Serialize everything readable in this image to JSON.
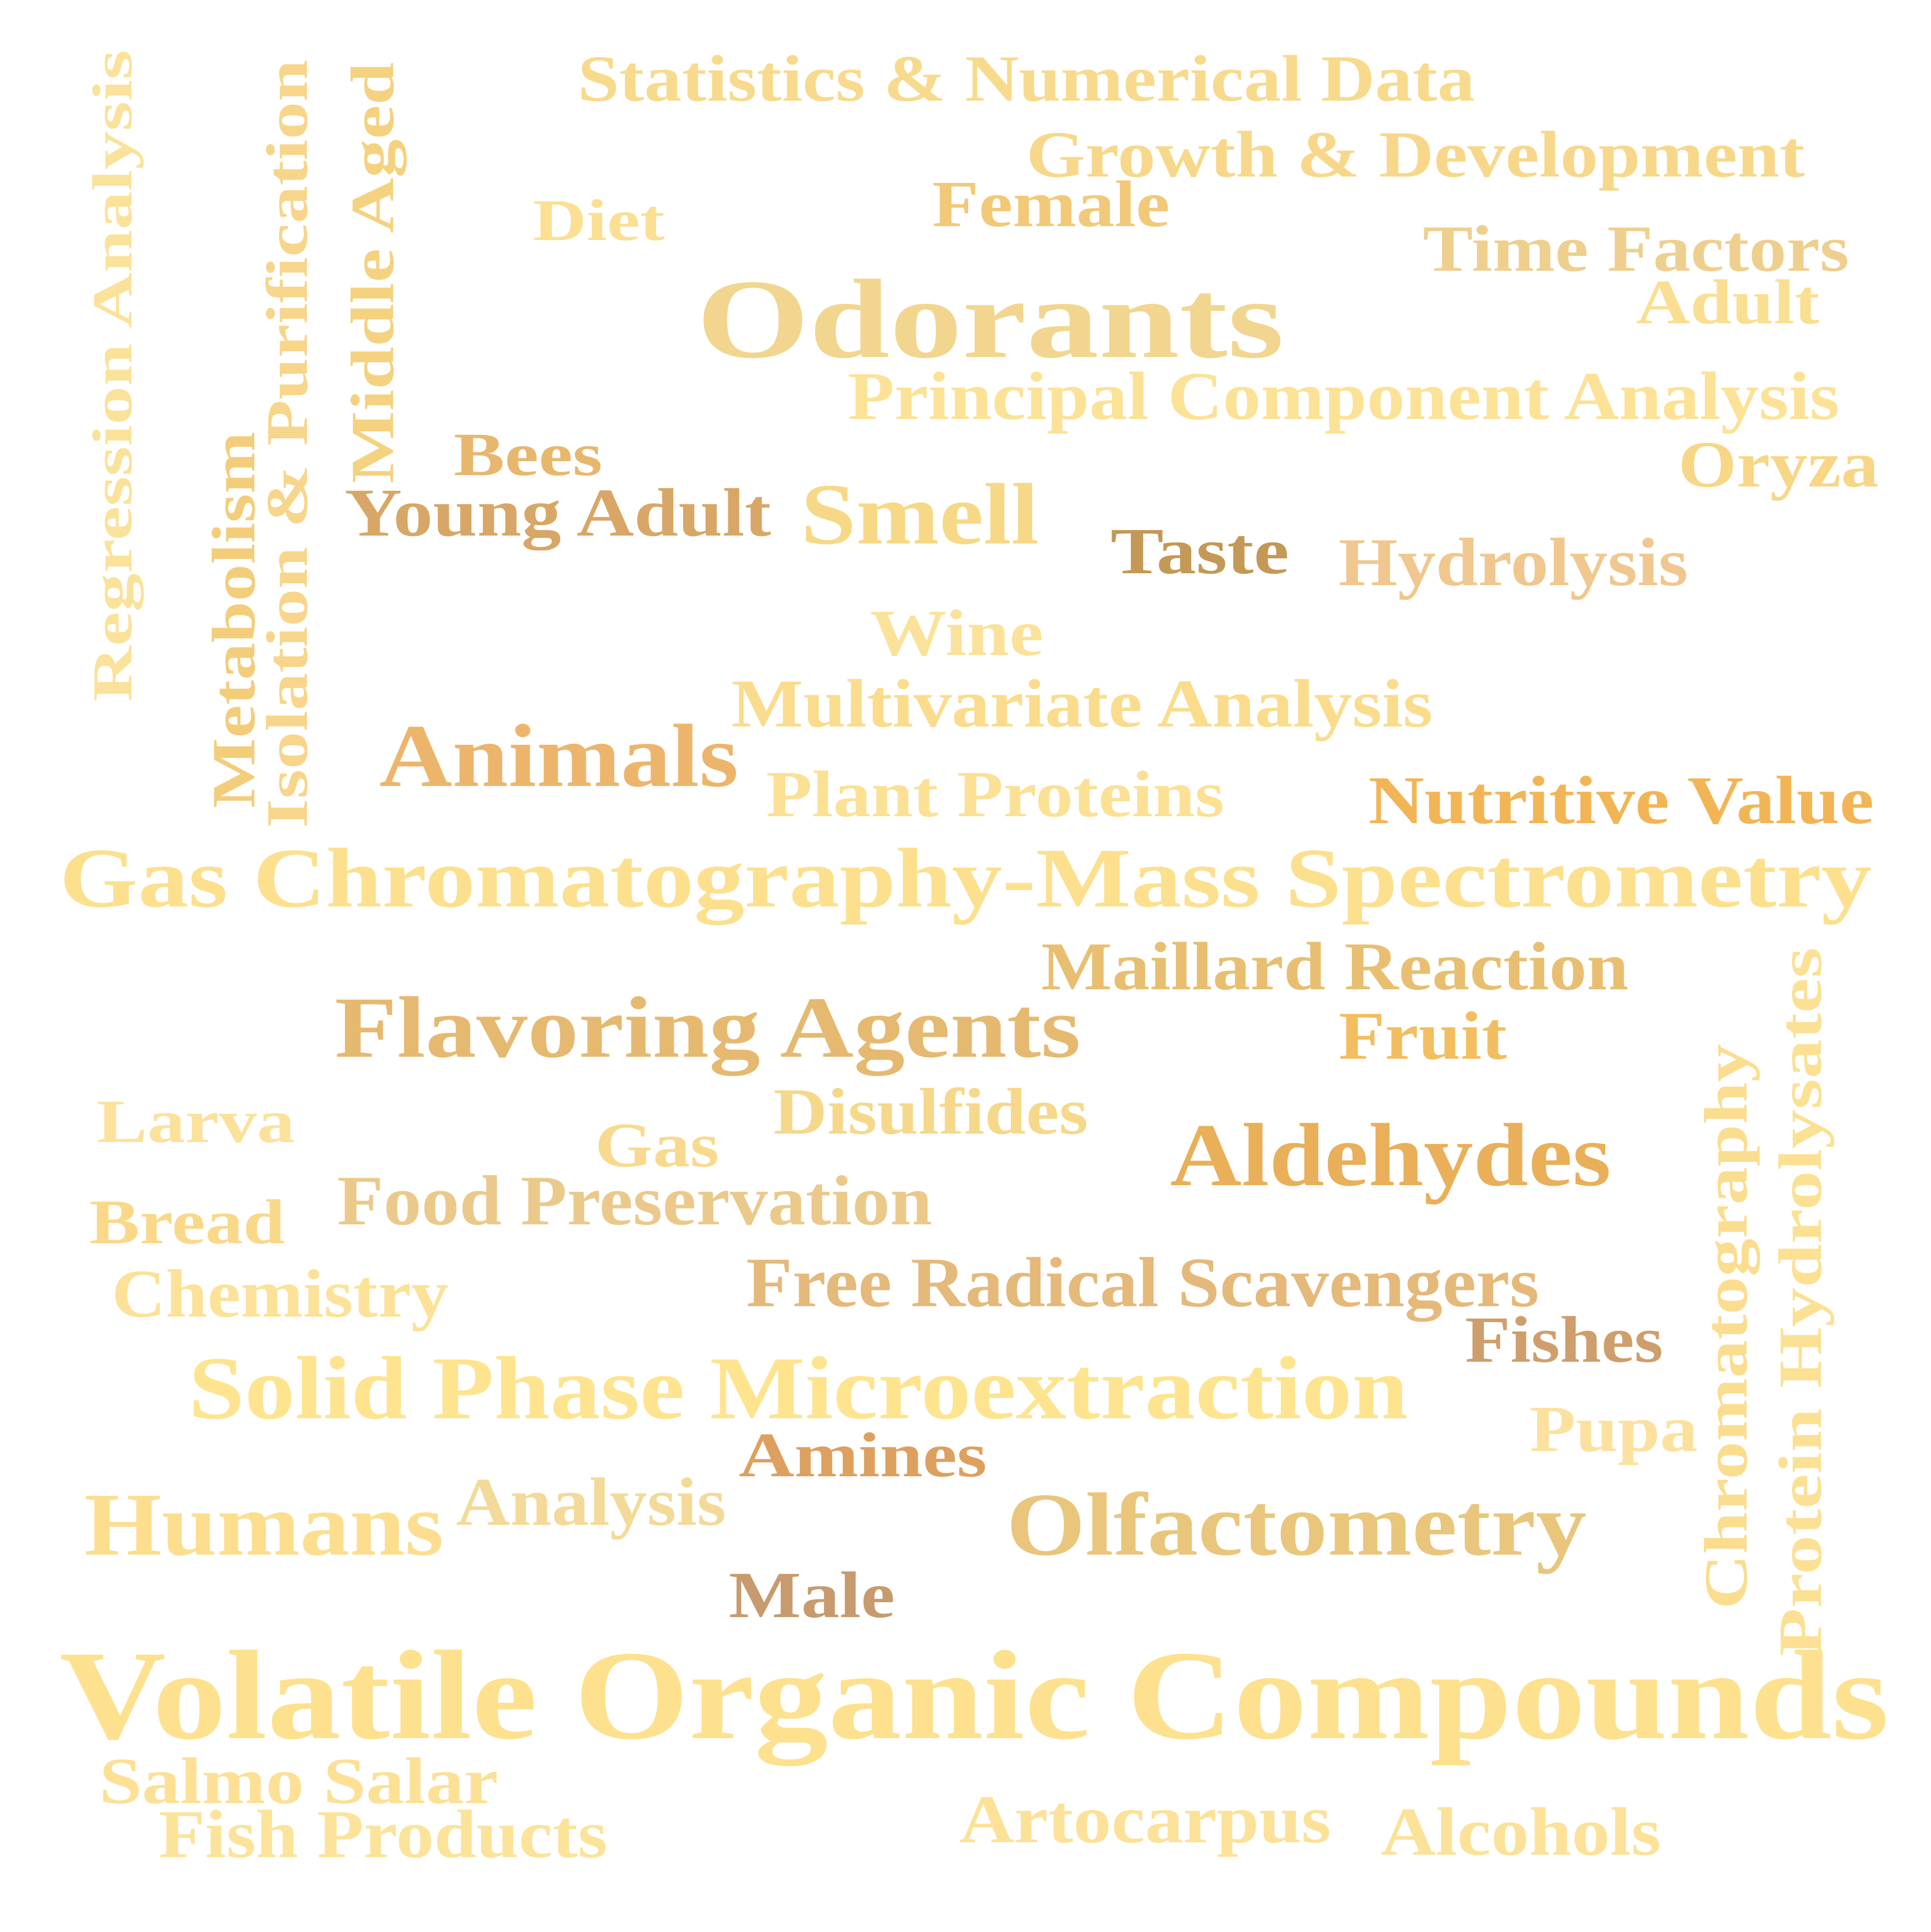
{
  "words": [
    {
      "text": "Statistics & Numerical Data",
      "color": "#F8DA8C"
    },
    {
      "text": "Growth & Development",
      "color": "#F7D88A"
    },
    {
      "text": "Female",
      "color": "#F1C978"
    },
    {
      "text": "Diet",
      "color": "#FBDF92"
    },
    {
      "text": "Time Factors",
      "color": "#EECF8E"
    },
    {
      "text": "Odorants",
      "color": "#F2D68F"
    },
    {
      "text": "Adult",
      "color": "#FADF92"
    },
    {
      "text": "Principal Component Analysis",
      "color": "#FCE296"
    },
    {
      "text": "Regression Analysis",
      "color": "#FBE29A"
    },
    {
      "text": "Isolation & Purification",
      "color": "#F7D58A"
    },
    {
      "text": "Middle Aged",
      "color": "#F5D27F"
    },
    {
      "text": "Metabolism",
      "color": "#F3CD7A"
    },
    {
      "text": "Bees",
      "color": "#E8B76E"
    },
    {
      "text": "Young Adult",
      "color": "#D8A666"
    },
    {
      "text": "Smell",
      "color": "#F6D886"
    },
    {
      "text": "Taste",
      "color": "#C49855"
    },
    {
      "text": "Hydrolysis",
      "color": "#F0C78E"
    },
    {
      "text": "Oryza",
      "color": "#F7D685"
    },
    {
      "text": "Wine",
      "color": "#FBE29A"
    },
    {
      "text": "Multivariate Analysis",
      "color": "#FADC8C"
    },
    {
      "text": "Animals",
      "color": "#EDB56C"
    },
    {
      "text": "Plant Proteins",
      "color": "#FCE094"
    },
    {
      "text": "Nutritive Value",
      "color": "#F2B556"
    },
    {
      "text": "Gas Chromatography-Mass Spectrometry",
      "color": "#FCE08E"
    },
    {
      "text": "Maillard Reaction",
      "color": "#E8BF71"
    },
    {
      "text": "Flavoring Agents",
      "color": "#E6B971"
    },
    {
      "text": "Fruit",
      "color": "#F2BE60"
    },
    {
      "text": "Protein Hydrolysates",
      "color": "#FCE194"
    },
    {
      "text": "Chromatography",
      "color": "#FADD8E"
    },
    {
      "text": "Larva",
      "color": "#FCE19B"
    },
    {
      "text": "Disulfides",
      "color": "#F6D88B"
    },
    {
      "text": "Gas",
      "color": "#F8DA8F"
    },
    {
      "text": "Aldehydes",
      "color": "#EAAF59"
    },
    {
      "text": "Bread",
      "color": "#FAD88A"
    },
    {
      "text": "Food Preservation",
      "color": "#EBC98A"
    },
    {
      "text": "Chemistry",
      "color": "#FCE298"
    },
    {
      "text": "Free Radical Scavengers",
      "color": "#E5B97A"
    },
    {
      "text": "Fishes",
      "color": "#CE9F6C"
    },
    {
      "text": "Solid Phase Microextraction",
      "color": "#FEE48E"
    },
    {
      "text": "Pupa",
      "color": "#FCE19E"
    },
    {
      "text": "Amines",
      "color": "#DDA05F"
    },
    {
      "text": "Humans",
      "color": "#FCDE8E"
    },
    {
      "text": "Analysis",
      "color": "#F4DA98"
    },
    {
      "text": "Olfactometry",
      "color": "#E9C67C"
    },
    {
      "text": "Male",
      "color": "#C79B6E"
    },
    {
      "text": "Volatile Organic Compounds",
      "color": "#FDE18E"
    },
    {
      "text": "Salmo Salar",
      "color": "#FCE096"
    },
    {
      "text": "Fish Products",
      "color": "#FCE39A"
    },
    {
      "text": "Artocarpus",
      "color": "#FCE198"
    },
    {
      "text": "Alcohols",
      "color": "#FCE298"
    }
  ]
}
